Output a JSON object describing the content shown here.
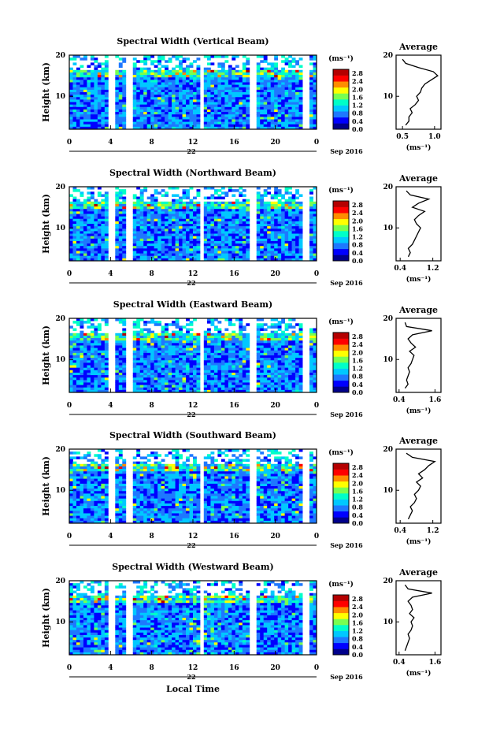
{
  "figure": {
    "x_axis_label": "Local Time",
    "date_label": "Sep 2016",
    "day_label": "22",
    "x_ticks": [
      "0",
      "4",
      "8",
      "12",
      "16",
      "20",
      "0"
    ],
    "y_axis_label": "Height (km)",
    "y_ticks": [
      "20",
      "10"
    ],
    "colorbar_unit": "(ms⁻¹)",
    "colorbar_ticks": [
      "2.8",
      "2.4",
      "2.0",
      "1.6",
      "1.2",
      "0.8",
      "0.4",
      "0.0"
    ],
    "profile_title": "Average",
    "profile_unit": "(ms⁻¹)",
    "colormap": [
      "#00008b",
      "#0000ff",
      "#1e78ff",
      "#00c8ff",
      "#00ffc8",
      "#78ff50",
      "#ffff00",
      "#ff8c00",
      "#ff0000",
      "#b40000"
    ]
  },
  "chart_data": [
    {
      "type": "heatmap",
      "title": "Spectral Width (Vertical Beam)",
      "xlabel": "Local Time",
      "ylabel": "Height (km)",
      "x_range": [
        0,
        24
      ],
      "y_range": [
        2,
        20
      ],
      "data_gaps_hours": [
        4.1,
        5.9,
        12.9,
        17.9,
        22.9
      ],
      "colorbar_range": [
        0.0,
        3.0
      ],
      "profile": {
        "title": "Average",
        "xlabel": "(ms⁻¹)",
        "x_ticks": [
          "0.5",
          "1.0"
        ],
        "x_range": [
          0.4,
          1.1
        ],
        "y_ticks": [
          "20",
          "10"
        ],
        "height_km": [
          3,
          4,
          5,
          6,
          7,
          8,
          9,
          10,
          11,
          12,
          13,
          14,
          15,
          16,
          17,
          18,
          19
        ],
        "values": [
          0.55,
          0.6,
          0.6,
          0.65,
          0.62,
          0.7,
          0.75,
          0.72,
          0.78,
          0.8,
          0.85,
          0.95,
          1.05,
          0.98,
          0.75,
          0.55,
          0.5
        ]
      }
    },
    {
      "type": "heatmap",
      "title": "Spectral Width (Northward Beam)",
      "xlabel": "Local Time",
      "ylabel": "Height (km)",
      "x_range": [
        0,
        24
      ],
      "y_range": [
        2,
        20
      ],
      "data_gaps_hours": [
        4.1,
        5.9,
        12.9,
        17.9,
        22.9
      ],
      "colorbar_range": [
        0.0,
        3.0
      ],
      "profile": {
        "title": "Average",
        "xlabel": "(ms⁻¹)",
        "x_ticks": [
          "0.4",
          "1.2"
        ],
        "x_range": [
          0.3,
          1.4
        ],
        "y_ticks": [
          "20",
          "10"
        ],
        "height_km": [
          3,
          4,
          5,
          6,
          7,
          8,
          9,
          10,
          11,
          12,
          13,
          14,
          15,
          16,
          17,
          18,
          19
        ],
        "values": [
          0.6,
          0.65,
          0.6,
          0.7,
          0.75,
          0.8,
          0.85,
          0.9,
          0.8,
          0.75,
          0.85,
          1.0,
          0.7,
          0.85,
          1.1,
          0.65,
          0.55
        ]
      }
    },
    {
      "type": "heatmap",
      "title": "Spectral Width (Eastward Beam)",
      "xlabel": "Local Time",
      "ylabel": "Height (km)",
      "x_range": [
        0,
        24
      ],
      "y_range": [
        2,
        20
      ],
      "data_gaps_hours": [
        4.1,
        5.9,
        12.9,
        17.9,
        22.9
      ],
      "colorbar_range": [
        0.0,
        3.0
      ],
      "profile": {
        "title": "Average",
        "xlabel": "(ms⁻¹)",
        "x_ticks": [
          "0.4",
          "1.6"
        ],
        "x_range": [
          0.3,
          1.8
        ],
        "y_ticks": [
          "20",
          "10"
        ],
        "height_km": [
          3,
          4,
          5,
          6,
          7,
          8,
          9,
          10,
          11,
          12,
          13,
          14,
          15,
          16,
          17,
          18,
          19
        ],
        "values": [
          0.6,
          0.7,
          0.65,
          0.7,
          0.75,
          0.7,
          0.8,
          0.85,
          0.9,
          0.75,
          0.95,
          0.8,
          0.7,
          0.85,
          1.5,
          0.65,
          0.6
        ]
      }
    },
    {
      "type": "heatmap",
      "title": "Spectral Width (Southward Beam)",
      "xlabel": "Local Time",
      "ylabel": "Height (km)",
      "x_range": [
        0,
        24
      ],
      "y_range": [
        2,
        20
      ],
      "data_gaps_hours": [
        4.1,
        5.9,
        12.9,
        17.9,
        22.9
      ],
      "colorbar_range": [
        0.0,
        3.0
      ],
      "profile": {
        "title": "Average",
        "xlabel": "(ms⁻¹)",
        "x_ticks": [
          "0.4",
          "1.2"
        ],
        "x_range": [
          0.3,
          1.4
        ],
        "y_ticks": [
          "20",
          "10"
        ],
        "height_km": [
          3,
          4,
          5,
          6,
          7,
          8,
          9,
          10,
          11,
          12,
          13,
          14,
          15,
          16,
          17,
          18,
          19
        ],
        "values": [
          0.6,
          0.65,
          0.7,
          0.65,
          0.75,
          0.8,
          0.75,
          0.85,
          0.9,
          0.8,
          0.95,
          0.85,
          1.0,
          1.1,
          1.25,
          0.7,
          0.55
        ]
      }
    },
    {
      "type": "heatmap",
      "title": "Spectral Width (Westward Beam)",
      "xlabel": "Local Time",
      "ylabel": "Height (km)",
      "x_range": [
        0,
        24
      ],
      "y_range": [
        2,
        20
      ],
      "data_gaps_hours": [
        4.1,
        5.9,
        12.9,
        17.9,
        22.9
      ],
      "colorbar_range": [
        0.0,
        3.0
      ],
      "profile": {
        "title": "Average",
        "xlabel": "(ms⁻¹)",
        "x_ticks": [
          "0.4",
          "1.6"
        ],
        "x_range": [
          0.3,
          1.8
        ],
        "y_ticks": [
          "20",
          "10"
        ],
        "height_km": [
          3,
          4,
          5,
          6,
          7,
          8,
          9,
          10,
          11,
          12,
          13,
          14,
          15,
          16,
          17,
          18,
          19
        ],
        "values": [
          0.6,
          0.65,
          0.7,
          0.75,
          0.7,
          0.8,
          0.85,
          0.8,
          0.9,
          0.75,
          0.85,
          0.8,
          0.7,
          0.85,
          1.5,
          0.7,
          0.6
        ]
      }
    }
  ]
}
